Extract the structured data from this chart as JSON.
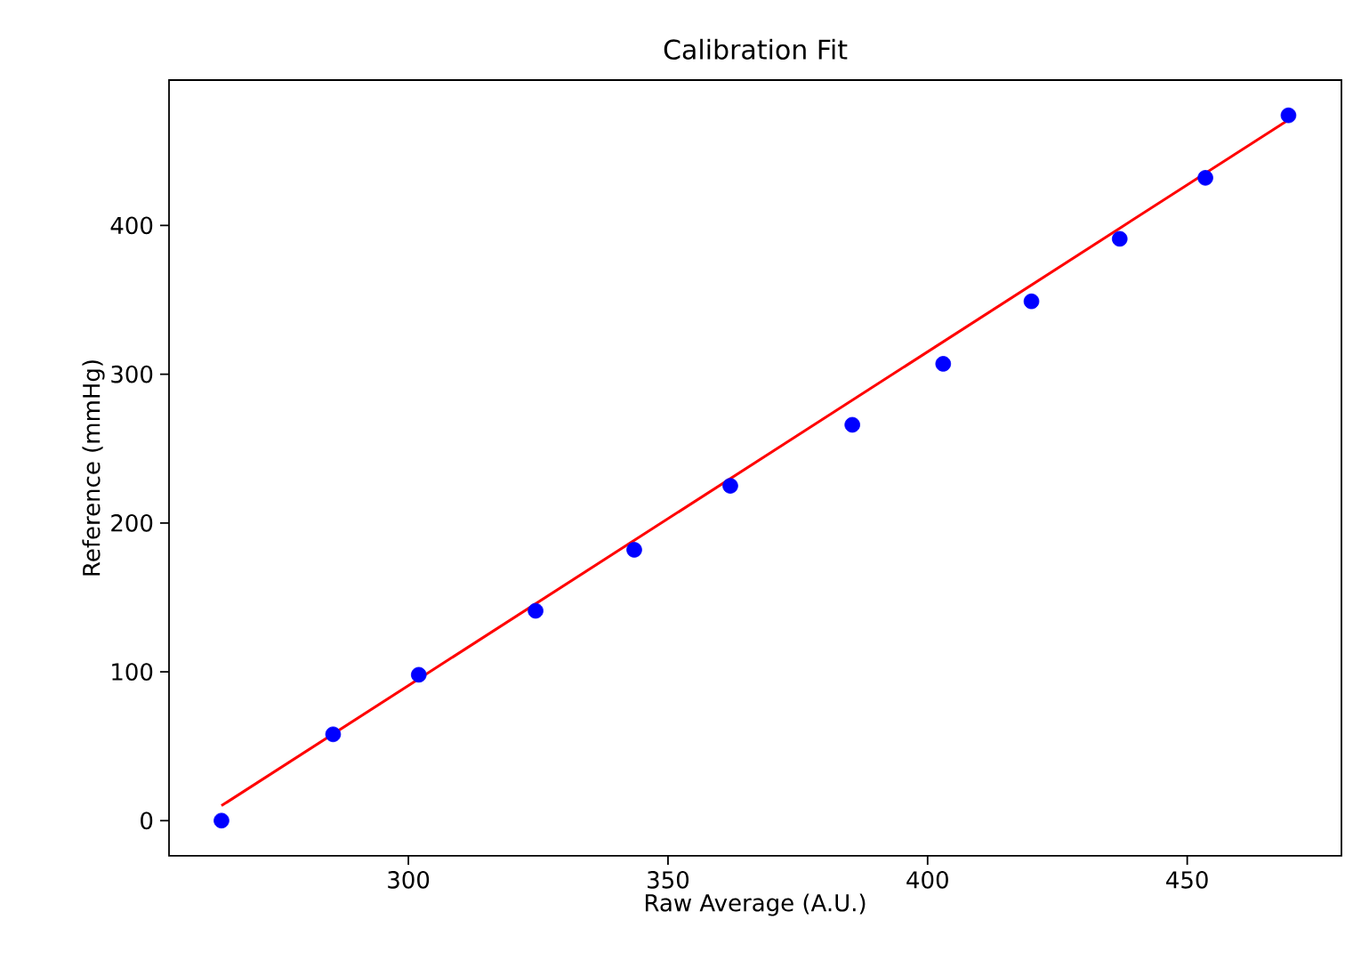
{
  "chart_data": {
    "type": "scatter",
    "title": "Calibration Fit",
    "xlabel": "Raw Average (A.U.)",
    "ylabel": "Reference (mmHg)",
    "xlim": [
      253.9,
      479.7
    ],
    "ylim": [
      -23.7,
      497.7
    ],
    "xticks": [
      300,
      350,
      400,
      450
    ],
    "yticks": [
      0,
      100,
      200,
      300,
      400
    ],
    "grid": false,
    "series": [
      {
        "color": "#0000ff",
        "marker": "circle",
        "x": [
          264,
          285.5,
          302,
          324.5,
          343.5,
          362,
          385.5,
          403,
          420,
          437,
          453.5,
          469.5
        ],
        "values": [
          0,
          58,
          98,
          141,
          182,
          225,
          266,
          307,
          349,
          391,
          432,
          474
        ]
      },
      {
        "type": "line",
        "color": "#ff0000",
        "line_style": "solid",
        "x": [
          264,
          469.5
        ],
        "values": [
          10,
          471
        ]
      }
    ]
  }
}
